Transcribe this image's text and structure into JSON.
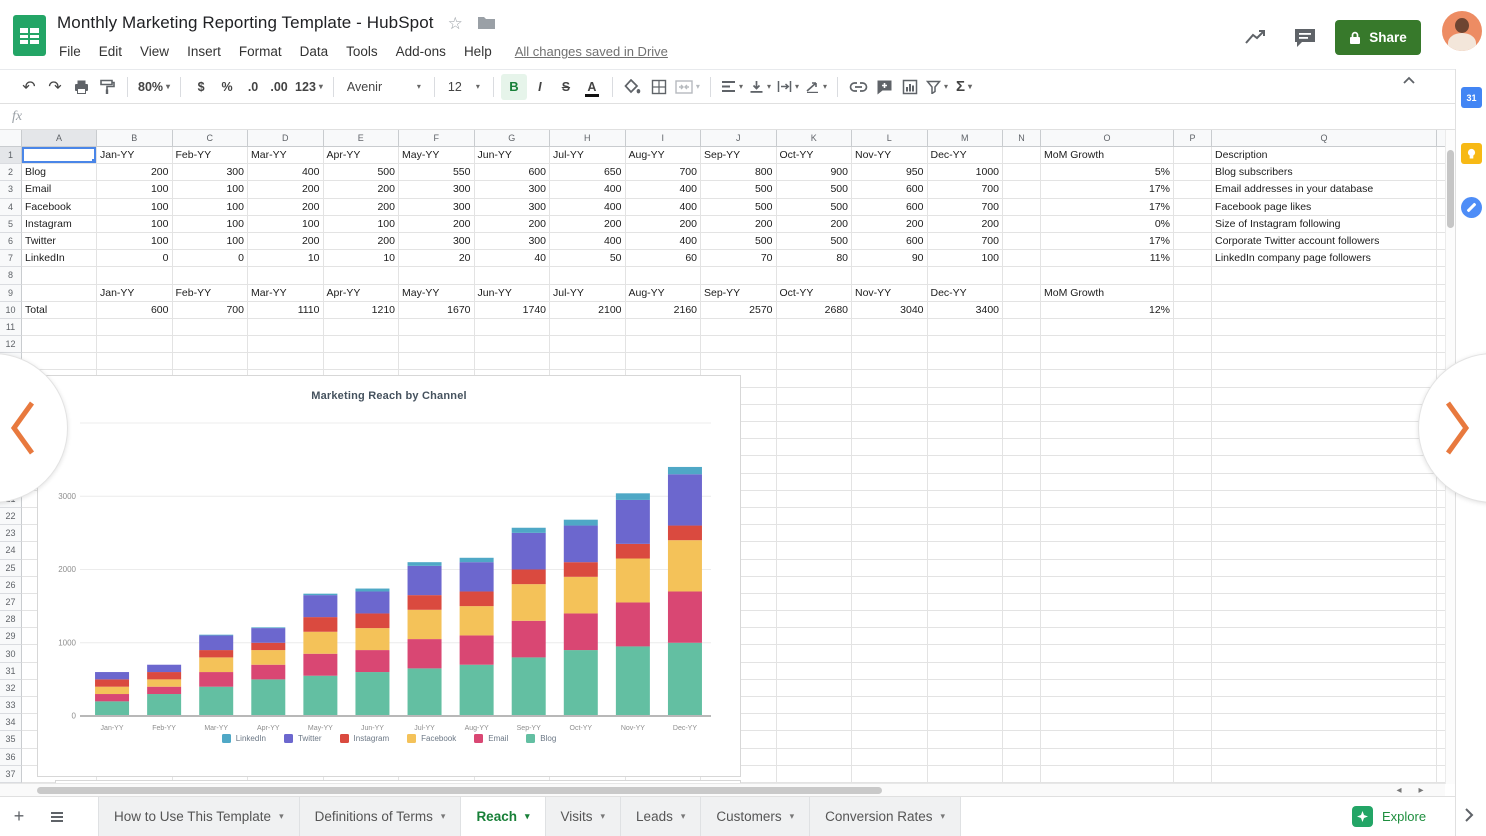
{
  "header": {
    "title": "Monthly Marketing Reporting Template - HubSpot",
    "menu_items": [
      "File",
      "Edit",
      "View",
      "Insert",
      "Format",
      "Data",
      "Tools",
      "Add-ons",
      "Help"
    ],
    "save_status": "All changes saved in Drive",
    "share_label": "Share"
  },
  "toolbar": {
    "zoom_value": "80%",
    "currency": "$",
    "percent": "%",
    "decimal_decrease": ".0",
    "decimal_increase": ".00",
    "number_format": "123",
    "font_name": "Avenir",
    "font_size": "12",
    "bold": "B",
    "italic": "I",
    "strikethrough": "S",
    "text_color": "A",
    "functions": "Σ"
  },
  "formula_bar": {
    "label": "fx"
  },
  "sheet": {
    "column_letters": [
      "A",
      "B",
      "C",
      "D",
      "E",
      "F",
      "G",
      "H",
      "I",
      "J",
      "K",
      "L",
      "M",
      "N",
      "O",
      "P",
      "Q"
    ],
    "visible_row_count": 37,
    "months": [
      "Jan-YY",
      "Feb-YY",
      "Mar-YY",
      "Apr-YY",
      "May-YY",
      "Jun-YY",
      "Jul-YY",
      "Aug-YY",
      "Sep-YY",
      "Oct-YY",
      "Nov-YY",
      "Dec-YY"
    ],
    "mom_growth_header": "MoM Growth",
    "description_header": "Description",
    "channels": [
      {
        "name": "Blog",
        "values": [
          200,
          300,
          400,
          500,
          550,
          600,
          650,
          700,
          800,
          900,
          950,
          1000
        ],
        "mom_growth": "5%",
        "description": "Blog subscribers"
      },
      {
        "name": "Email",
        "values": [
          100,
          100,
          200,
          200,
          300,
          300,
          400,
          400,
          500,
          500,
          600,
          700
        ],
        "mom_growth": "17%",
        "description": "Email addresses in your database"
      },
      {
        "name": "Facebook",
        "values": [
          100,
          100,
          200,
          200,
          300,
          300,
          400,
          400,
          500,
          500,
          600,
          700
        ],
        "mom_growth": "17%",
        "description": "Facebook page likes"
      },
      {
        "name": "Instagram",
        "values": [
          100,
          100,
          100,
          100,
          200,
          200,
          200,
          200,
          200,
          200,
          200,
          200
        ],
        "mom_growth": "0%",
        "description": "Size of Instagram following"
      },
      {
        "name": "Twitter",
        "values": [
          100,
          100,
          200,
          200,
          300,
          300,
          400,
          400,
          500,
          500,
          600,
          700
        ],
        "mom_growth": "17%",
        "description": "Corporate Twitter account followers"
      },
      {
        "name": "LinkedIn",
        "values": [
          0,
          0,
          10,
          10,
          20,
          40,
          50,
          60,
          70,
          80,
          90,
          100
        ],
        "mom_growth": "11%",
        "description": "LinkedIn company page followers"
      }
    ],
    "total_row": {
      "label": "Total",
      "values": [
        600,
        700,
        1110,
        1210,
        1670,
        1740,
        2100,
        2160,
        2570,
        2680,
        3040,
        3400
      ],
      "mom_growth": "12%"
    }
  },
  "chart_data": {
    "type": "bar",
    "stacked": true,
    "title": "Marketing Reach by Channel",
    "categories": [
      "Jan-YY",
      "Feb-YY",
      "Mar-YY",
      "Apr-YY",
      "May-YY",
      "Jun-YY",
      "Jul-YY",
      "Aug-YY",
      "Sep-YY",
      "Oct-YY",
      "Nov-YY",
      "Dec-YY"
    ],
    "series": [
      {
        "name": "Blog",
        "color": "#63BFA2",
        "values": [
          200,
          300,
          400,
          500,
          550,
          600,
          650,
          700,
          800,
          900,
          950,
          1000
        ]
      },
      {
        "name": "Email",
        "color": "#D94773",
        "values": [
          100,
          100,
          200,
          200,
          300,
          300,
          400,
          400,
          500,
          500,
          600,
          700
        ]
      },
      {
        "name": "Facebook",
        "color": "#F4C259",
        "values": [
          100,
          100,
          200,
          200,
          300,
          300,
          400,
          400,
          500,
          500,
          600,
          700
        ]
      },
      {
        "name": "Instagram",
        "color": "#DA4A3F",
        "values": [
          100,
          100,
          100,
          100,
          200,
          200,
          200,
          200,
          200,
          200,
          200,
          200
        ]
      },
      {
        "name": "Twitter",
        "color": "#6C67CE",
        "values": [
          100,
          100,
          200,
          200,
          300,
          300,
          400,
          400,
          500,
          500,
          600,
          700
        ]
      },
      {
        "name": "LinkedIn",
        "color": "#4FA8C6",
        "values": [
          0,
          0,
          10,
          10,
          20,
          40,
          50,
          60,
          70,
          80,
          90,
          100
        ]
      }
    ],
    "legend": [
      "LinkedIn",
      "Twitter",
      "Instagram",
      "Facebook",
      "Email",
      "Blog"
    ],
    "legend_position": "bottom",
    "grid": true,
    "ylim": [
      0,
      4000
    ],
    "yticks": [
      0,
      1000,
      2000,
      3000
    ]
  },
  "tabs": {
    "items": [
      {
        "label": "How to Use This Template",
        "active": false
      },
      {
        "label": "Definitions of Terms",
        "active": false
      },
      {
        "label": "Reach",
        "active": true
      },
      {
        "label": "Visits",
        "active": false
      },
      {
        "label": "Leads",
        "active": false
      },
      {
        "label": "Customers",
        "active": false
      },
      {
        "label": "Conversion Rates",
        "active": false
      }
    ],
    "explore_label": "Explore"
  },
  "right_panel": {
    "calendar_label": "31"
  },
  "colors": {
    "share_button": "#37792B",
    "active_tab_text": "#188038",
    "selection_blue": "#4a86e8",
    "carousel_arrow_orange": "#E8793E"
  }
}
